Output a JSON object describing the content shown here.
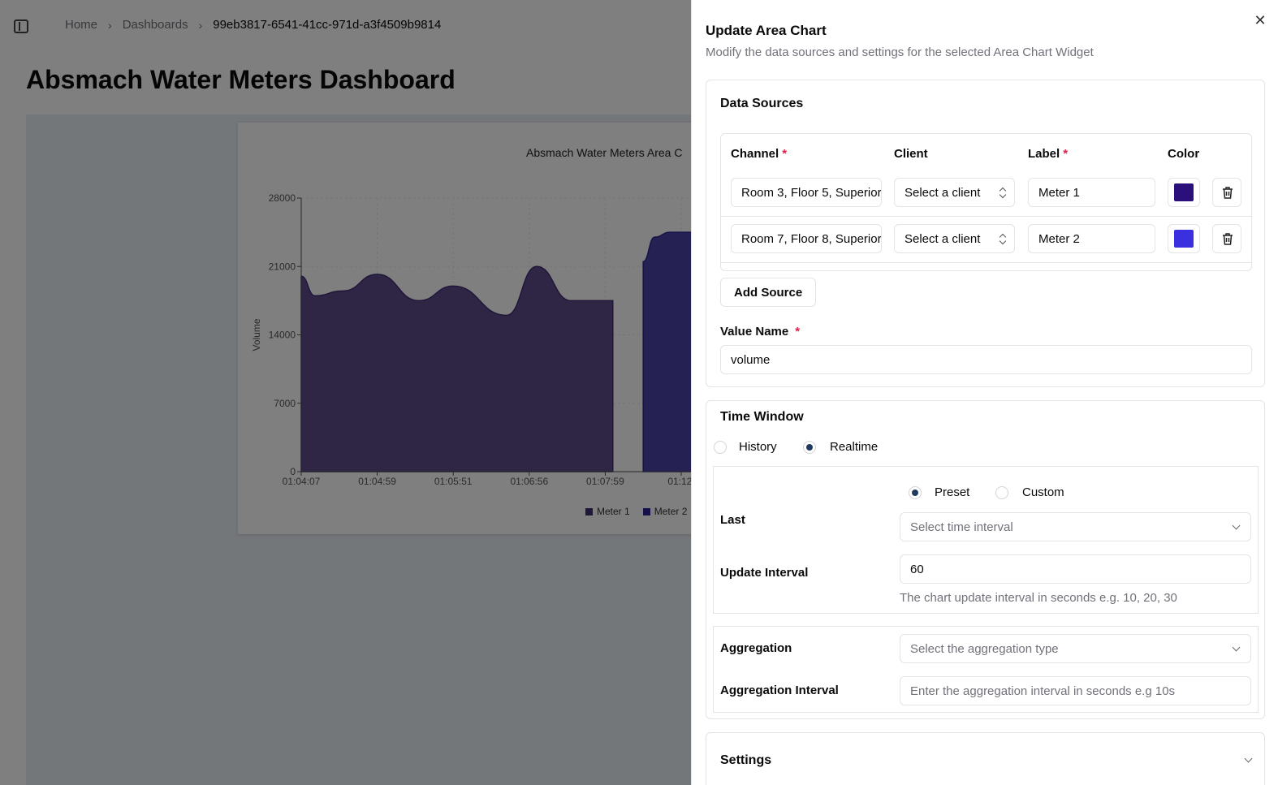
{
  "breadcrumb": {
    "home": "Home",
    "dashboards": "Dashboards",
    "current": "99eb3817-6541-41cc-971d-a3f4509b9814"
  },
  "page": {
    "title": "Absmach Water Meters Dashboard"
  },
  "chart_data": {
    "type": "area",
    "title": "Absmach Water Meters Area C",
    "ylabel": "Volume",
    "xlabel": "",
    "ylim": [
      0,
      28000
    ],
    "yticks": [
      0,
      7000,
      14000,
      21000,
      28000
    ],
    "xticks": [
      "01:04:07",
      "01:04:59",
      "01:05:51",
      "01:06:56",
      "01:07:59",
      "01:12:"
    ],
    "grid": true,
    "legend_position": "bottom",
    "series": [
      {
        "name": "Meter 1",
        "color": "#3f2d73",
        "x": [
          0,
          0.18,
          0.55,
          1.0,
          1.55,
          2.0,
          2.7,
          3.1,
          3.55,
          3.95,
          4.1
        ],
        "values": [
          20000,
          18000,
          18500,
          20200,
          17500,
          19000,
          16000,
          21000,
          17500,
          17500,
          17500
        ]
      },
      {
        "name": "Meter 2",
        "color": "#2a2596",
        "x": [
          4.5,
          4.65,
          4.85,
          5.2
        ],
        "values": [
          21500,
          24000,
          24500,
          24500
        ]
      }
    ]
  },
  "sheet": {
    "title": "Update Area Chart",
    "description": "Modify the data sources and settings for the selected Area Chart Widget",
    "close": "✕",
    "data_sources": {
      "title": "Data Sources",
      "headers": {
        "channel": "Channel",
        "client": "Client",
        "label": "Label",
        "color": "Color"
      },
      "required_mark": "*",
      "rows": [
        {
          "channel": "Room 3, Floor 5, Superior",
          "client": "Select a client",
          "label": "Meter 1",
          "color": "#2b0f7a"
        },
        {
          "channel": "Room 7, Floor 8, Superior",
          "client": "Select a client",
          "label": "Meter 2",
          "color": "#3b30e0"
        }
      ],
      "add_source": "Add Source",
      "value_name_label": "Value Name",
      "value_name": "volume"
    },
    "time_window": {
      "title": "Time Window",
      "history": "History",
      "realtime": "Realtime",
      "mode": "Realtime",
      "preset": "Preset",
      "custom": "Custom",
      "range_mode": "Preset",
      "last_label": "Last",
      "last_placeholder": "Select time interval",
      "update_interval_label": "Update Interval",
      "update_interval": "60",
      "update_interval_help": "The chart update interval in seconds e.g. 10, 20, 30",
      "aggregation_label": "Aggregation",
      "aggregation_placeholder": "Select the aggregation type",
      "aggregation_interval_label": "Aggregation Interval",
      "aggregation_interval_placeholder": "Enter the aggregation interval in seconds e.g 10s"
    },
    "settings": {
      "title": "Settings"
    }
  }
}
